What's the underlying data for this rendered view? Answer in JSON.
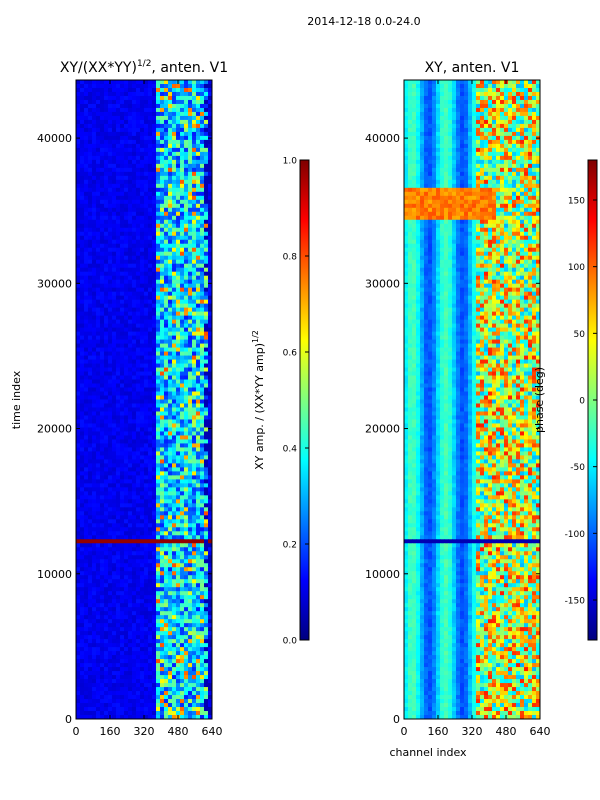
{
  "figure": {
    "suptitle": "2014-12-18 0.0-24.0"
  },
  "colors": {
    "jet": [
      "#00007f",
      "#0000ff",
      "#007fff",
      "#00ffff",
      "#7fff7f",
      "#ffff00",
      "#ff7f00",
      "#ff0000",
      "#7f0000"
    ]
  },
  "chart_data": [
    {
      "type": "heatmap",
      "title_main": "XY/(XX*YY)",
      "title_sup": "1/2",
      "title_tail": ", anten. V1",
      "xlabel": "",
      "ylabel": "time index",
      "xlim": [
        0,
        640
      ],
      "ylim": [
        0,
        44000
      ],
      "xticks": [
        0,
        160,
        320,
        480,
        640
      ],
      "yticks": [
        0,
        10000,
        20000,
        30000,
        40000
      ],
      "colorbar": {
        "label_main": "XY amp. / (XX*YY amp)",
        "label_sup": "1/2",
        "range": [
          0.0,
          1.0
        ],
        "ticks": [
          "0.0",
          "0.2",
          "0.4",
          "0.6",
          "0.8",
          "1.0"
        ],
        "tick_values": [
          0.0,
          0.2,
          0.4,
          0.6,
          0.8,
          1.0
        ]
      },
      "description_values": {
        "background_level": 0.1,
        "active_band_channels": [
          380,
          620
        ],
        "saturated_rows_time": [
          12200,
          12400
        ]
      }
    },
    {
      "type": "heatmap",
      "title_main": "XY, anten. V1",
      "xlabel": "channel index",
      "ylabel": "",
      "xlim": [
        0,
        640
      ],
      "ylim": [
        0,
        44000
      ],
      "xticks": [
        0,
        160,
        320,
        480,
        640
      ],
      "yticks": [
        0,
        10000,
        20000,
        30000,
        40000
      ],
      "colorbar": {
        "label_main": "phase (deg)",
        "range": [
          -180,
          180
        ],
        "ticks": [
          "-150",
          "-100",
          "-50",
          "0",
          "50",
          "100",
          "150"
        ],
        "tick_values": [
          -150,
          -100,
          -50,
          0,
          50,
          100,
          150
        ]
      },
      "description_values": {
        "background_phase_deg": -60,
        "high_phase_band_time": [
          34500,
          36500
        ]
      }
    }
  ]
}
